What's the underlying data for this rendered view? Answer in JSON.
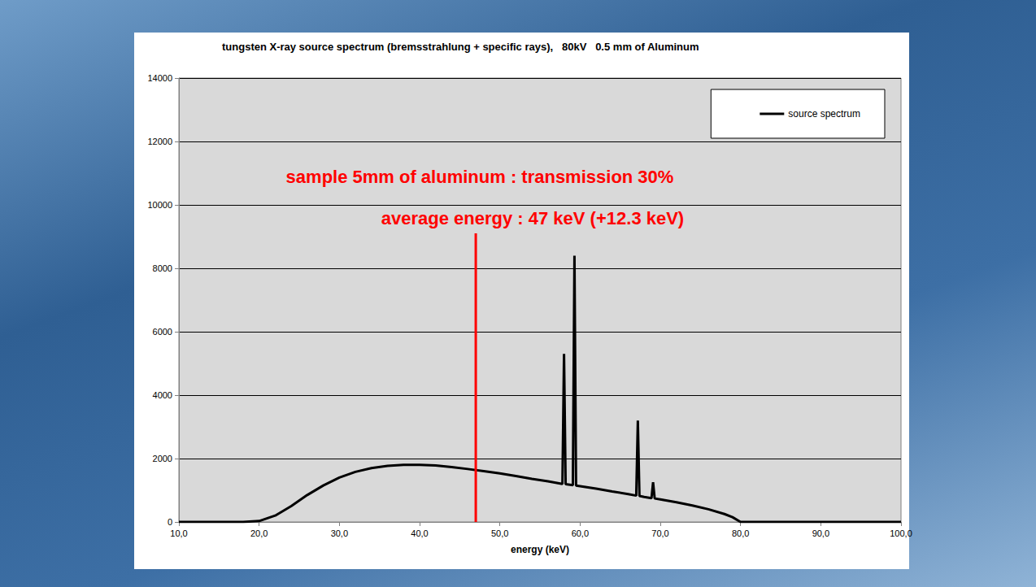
{
  "chart_data": {
    "type": "line",
    "title": "tungsten X-ray source spectrum (bremsstrahlung + specific rays),   80kV   0.5 mm of Aluminum",
    "x_label": "energy (keV)",
    "annotations": [
      "sample 5mm of aluminum : transmission 30%",
      "average energy : 47 keV (+12.3 keV)"
    ],
    "vline": {
      "x": 47,
      "ymin": 0,
      "ymax": 9100,
      "color": "#ff0000"
    },
    "series": [
      {
        "name": "source spectrum",
        "color": "#000000",
        "x": [
          10,
          15,
          18,
          20,
          22,
          24,
          26,
          28,
          30,
          32,
          34,
          36,
          38,
          40,
          42,
          44,
          46,
          48,
          50,
          52,
          54,
          56,
          57.8,
          58.0,
          58.2,
          59.1,
          59.3,
          59.5,
          60,
          62,
          64,
          66,
          67.0,
          67.2,
          67.4,
          68,
          68.9,
          69.1,
          69.3,
          70,
          72,
          74,
          76,
          78,
          79,
          80,
          90,
          100
        ],
        "values": [
          0,
          0,
          0,
          30,
          200,
          500,
          850,
          1150,
          1400,
          1580,
          1700,
          1770,
          1800,
          1800,
          1780,
          1730,
          1670,
          1600,
          1530,
          1450,
          1360,
          1280,
          1200,
          5300,
          1190,
          1160,
          8400,
          1150,
          1130,
          1050,
          960,
          880,
          830,
          3200,
          820,
          790,
          750,
          1250,
          740,
          710,
          620,
          520,
          400,
          250,
          150,
          0,
          0,
          0
        ]
      }
    ],
    "xlim": [
      10,
      100
    ],
    "xticks": [
      {
        "value": 10,
        "label": "10,0"
      },
      {
        "value": 20,
        "label": "20,0"
      },
      {
        "value": 30,
        "label": "30,0"
      },
      {
        "value": 40,
        "label": "40,0"
      },
      {
        "value": 50,
        "label": "50,0"
      },
      {
        "value": 60,
        "label": "60,0"
      },
      {
        "value": 70,
        "label": "70,0"
      },
      {
        "value": 80,
        "label": "80,0"
      },
      {
        "value": 90,
        "label": "90,0"
      },
      {
        "value": 100,
        "label": "100,0"
      }
    ],
    "ylim": [
      0,
      14000
    ],
    "yticks": [
      0,
      2000,
      4000,
      6000,
      8000,
      10000,
      12000,
      14000
    ],
    "grid": true,
    "legend": "upper right"
  }
}
